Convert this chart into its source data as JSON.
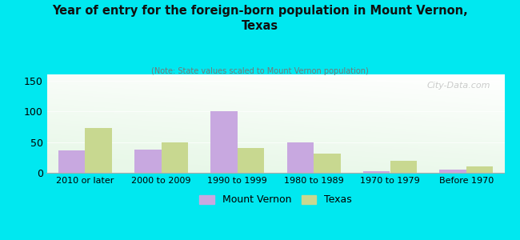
{
  "title": "Year of entry for the foreign-born population in Mount Vernon,\nTexas",
  "subtitle": "(Note: State values scaled to Mount Vernon population)",
  "categories": [
    "2010 or later",
    "2000 to 2009",
    "1990 to 1999",
    "1980 to 1989",
    "1970 to 1979",
    "Before 1970"
  ],
  "mount_vernon": [
    37,
    38,
    100,
    49,
    3,
    5
  ],
  "texas": [
    73,
    50,
    40,
    31,
    20,
    11
  ],
  "mv_color": "#c8a8e0",
  "tx_color": "#c8d890",
  "background_color": "#00e8f0",
  "ylim": [
    0,
    160
  ],
  "yticks": [
    0,
    50,
    100,
    150
  ],
  "bar_width": 0.35,
  "legend_mv": "Mount Vernon",
  "legend_tx": "Texas",
  "watermark": "City-Data.com"
}
